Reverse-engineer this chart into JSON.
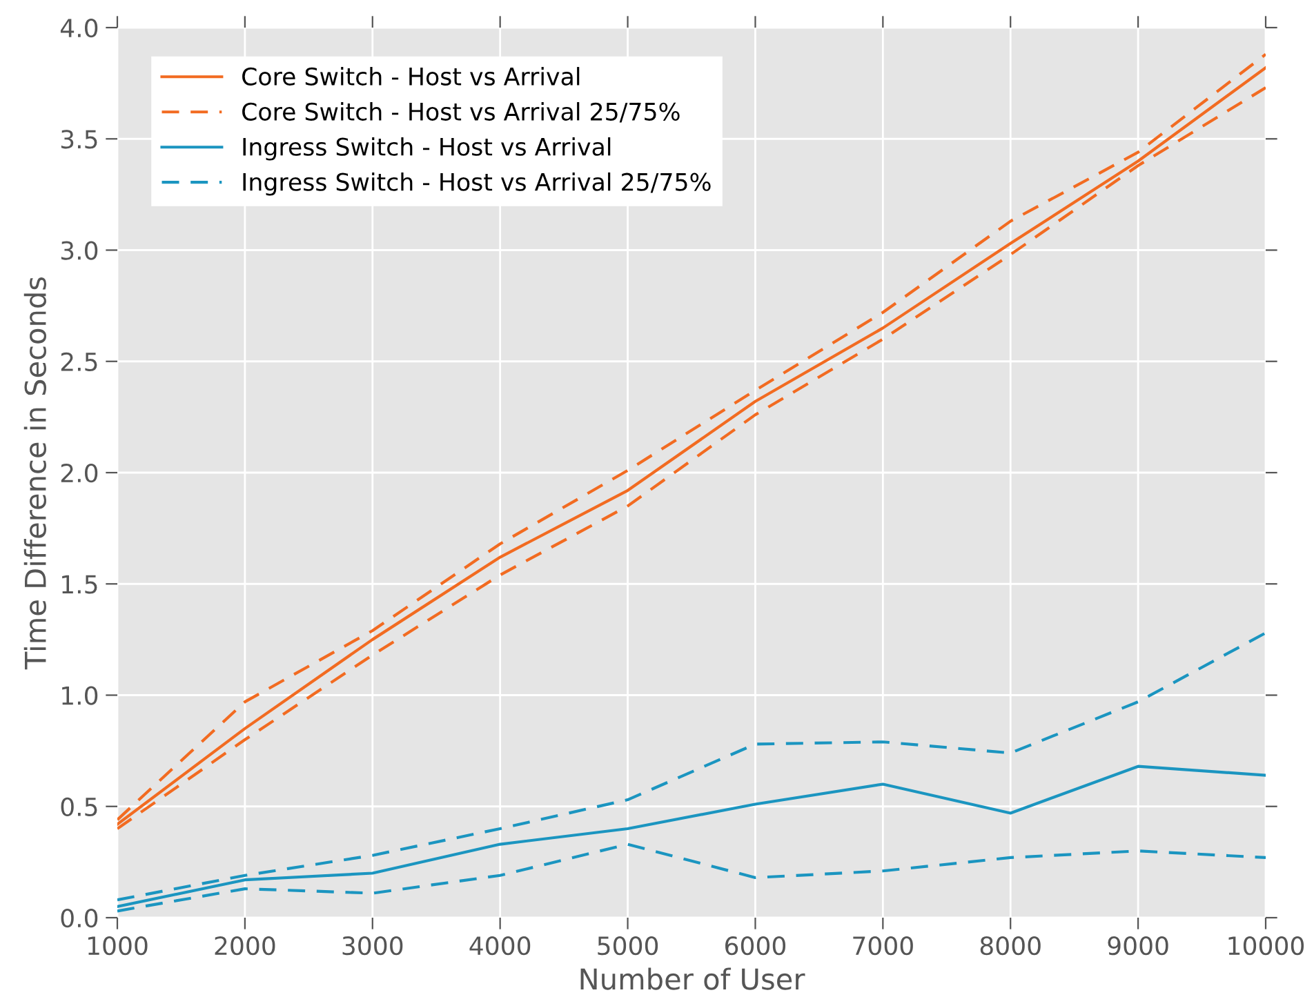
{
  "chart_data": {
    "type": "line",
    "xlabel": "Number of User",
    "ylabel": "Time Difference in Seconds",
    "x": [
      1000,
      2000,
      3000,
      4000,
      5000,
      6000,
      7000,
      8000,
      9000,
      10000
    ],
    "series": [
      {
        "name": "Core Switch - Host vs Arrival",
        "color": "#f26b21",
        "line_style": "solid",
        "values": [
          0.42,
          0.85,
          1.25,
          1.62,
          1.92,
          2.32,
          2.65,
          3.03,
          3.4,
          3.82
        ]
      },
      {
        "name": "Core Switch - Host vs Arrival 25/75%",
        "color": "#f26b21",
        "line_style": "dashed",
        "values": [
          0.44,
          0.97,
          1.29,
          1.68,
          2.01,
          2.37,
          2.72,
          3.13,
          3.44,
          3.88
        ]
      },
      {
        "color": "#f26b21",
        "line_style": "dashed",
        "values": [
          0.4,
          0.8,
          1.18,
          1.54,
          1.85,
          2.26,
          2.6,
          2.98,
          3.38,
          3.73
        ]
      },
      {
        "name": "Ingress Switch - Host vs Arrival",
        "color": "#1b95c0",
        "line_style": "solid",
        "values": [
          0.05,
          0.17,
          0.2,
          0.33,
          0.4,
          0.51,
          0.6,
          0.47,
          0.68,
          0.64
        ]
      },
      {
        "name": "Ingress Switch - Host vs Arrival 25/75%",
        "color": "#1b95c0",
        "line_style": "dashed",
        "values": [
          0.08,
          0.19,
          0.28,
          0.4,
          0.53,
          0.78,
          0.79,
          0.74,
          0.97,
          1.28
        ]
      },
      {
        "color": "#1b95c0",
        "line_style": "dashed",
        "values": [
          0.03,
          0.13,
          0.11,
          0.19,
          0.33,
          0.18,
          0.21,
          0.27,
          0.3,
          0.27
        ]
      }
    ],
    "xlim": [
      1000,
      10000
    ],
    "ylim": [
      0,
      4.0
    ],
    "xticks": [
      1000,
      2000,
      3000,
      4000,
      5000,
      6000,
      7000,
      8000,
      9000,
      10000
    ],
    "yticks": [
      {
        "value": 0,
        "label": "0.0"
      },
      {
        "value": 0.5,
        "label": "0.5"
      },
      {
        "value": 1,
        "label": "1.0"
      },
      {
        "value": 1.5,
        "label": "1.5"
      },
      {
        "value": 2,
        "label": "2.0"
      },
      {
        "value": 2.5,
        "label": "2.5"
      },
      {
        "value": 3,
        "label": "3.0"
      },
      {
        "value": 3.5,
        "label": "3.5"
      },
      {
        "value": 4,
        "label": "4.0"
      }
    ],
    "grid": true,
    "legend": "top left",
    "marker": "none"
  }
}
